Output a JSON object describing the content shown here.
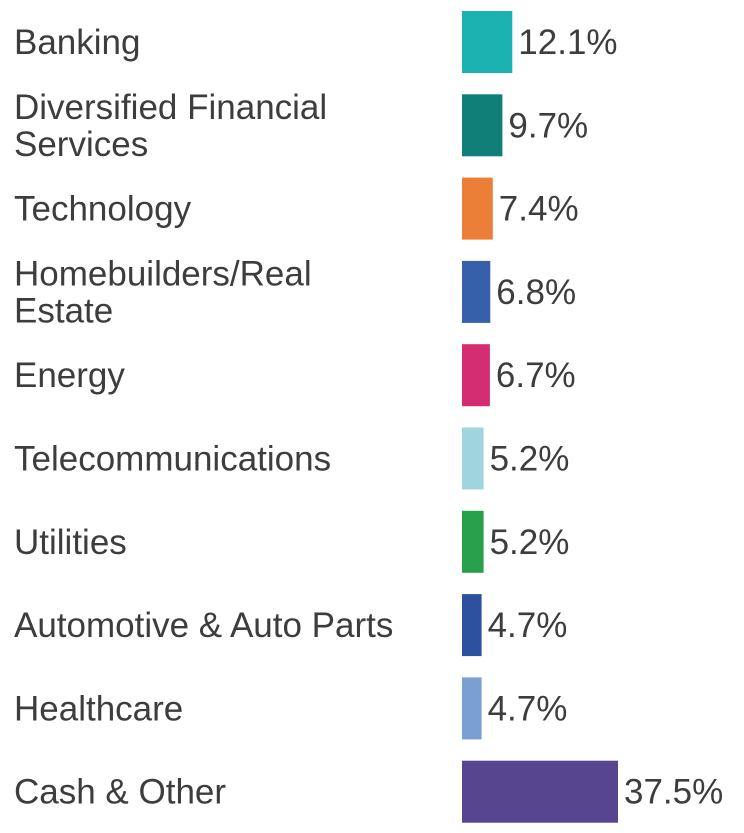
{
  "chart_data": {
    "type": "bar",
    "orientation": "horizontal",
    "categories": [
      [
        "Banking"
      ],
      [
        "Diversified Financial",
        "Services"
      ],
      [
        "Technology"
      ],
      [
        "Homebuilders/Real",
        "Estate"
      ],
      [
        "Energy"
      ],
      [
        "Telecommunications"
      ],
      [
        "Utilities"
      ],
      [
        "Automotive & Auto Parts"
      ],
      [
        "Healthcare"
      ],
      [
        "Cash & Other"
      ]
    ],
    "values": [
      12.1,
      9.7,
      7.4,
      6.8,
      6.7,
      5.2,
      5.2,
      4.7,
      4.7,
      37.5
    ],
    "value_labels": [
      "12.1%",
      "9.7%",
      "7.4%",
      "6.8%",
      "6.7%",
      "5.2%",
      "5.2%",
      "4.7%",
      "4.7%",
      "37.5%"
    ],
    "colors": [
      "#1bb1b1",
      "#107f78",
      "#ec7f37",
      "#3760ab",
      "#d52d72",
      "#a0d5de",
      "#28a04a",
      "#2c4f9e",
      "#7a9fd3",
      "#58458f"
    ],
    "title": "",
    "xlabel": "",
    "ylabel": "",
    "grid": false,
    "legend": "none"
  }
}
